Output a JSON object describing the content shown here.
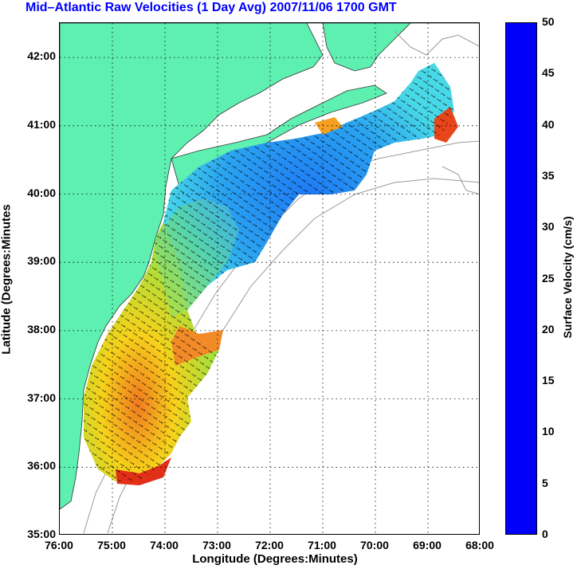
{
  "title": "Mid–Atlantic Raw Velocities (1 Day Avg) 2007/11/06 1700 GMT",
  "map": {
    "xlabel": "Longitude (Degrees:Minutes)",
    "ylabel": "Latitude (Degrees:Minutes",
    "x_ticks": [
      "76:00",
      "75:00",
      "74:00",
      "73:00",
      "72:00",
      "71:00",
      "70:00",
      "69:00",
      "68:00"
    ],
    "y_ticks": [
      "42:00",
      "41:00",
      "40:00",
      "39:00",
      "38:00",
      "37:00",
      "36:00",
      "35:00"
    ],
    "lon_range": [
      -76,
      -68
    ],
    "lat_range": [
      35,
      42.5
    ],
    "land_color": "#5ef0b0",
    "grid": "dotted"
  },
  "colorbar": {
    "label": "Surface Velocity (cm/s)",
    "ticks": [
      "50",
      "45",
      "40",
      "35",
      "30",
      "25",
      "20",
      "15",
      "10",
      "5",
      "0"
    ],
    "range": [
      0,
      50
    ],
    "colormap": "jet"
  }
}
